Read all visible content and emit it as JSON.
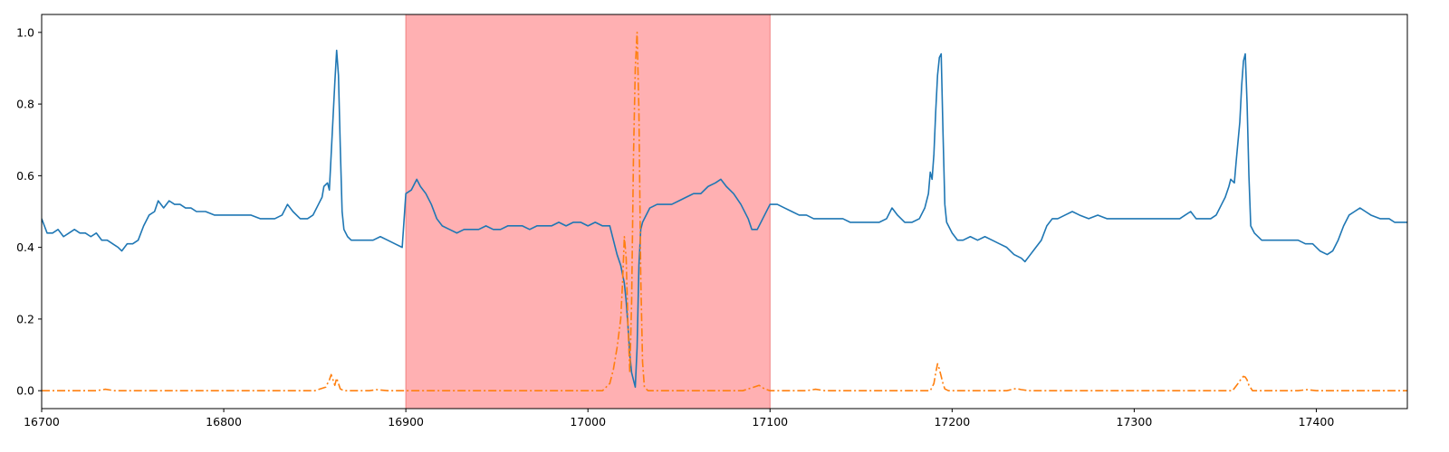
{
  "chart_data": {
    "type": "line",
    "title": "",
    "xlabel": "",
    "ylabel": "",
    "xlim": [
      16700,
      17450
    ],
    "ylim": [
      -0.05,
      1.05
    ],
    "grid": false,
    "legend": "none",
    "x_ticks": [
      "16700",
      "16800",
      "16900",
      "17000",
      "17100",
      "17200",
      "17300",
      "17400"
    ],
    "y_ticks": [
      "0.0",
      "0.2",
      "0.4",
      "0.6",
      "0.8",
      "1.0"
    ],
    "highlight_region": {
      "x_start": 16900,
      "x_end": 17100,
      "color": "#ffb0b2"
    },
    "series": [
      {
        "color": "#1f77b4",
        "style": "solid",
        "points": [
          [
            16700,
            0.48
          ],
          [
            16703,
            0.44
          ],
          [
            16706,
            0.44
          ],
          [
            16709,
            0.45
          ],
          [
            16712,
            0.43
          ],
          [
            16715,
            0.44
          ],
          [
            16718,
            0.45
          ],
          [
            16721,
            0.44
          ],
          [
            16724,
            0.44
          ],
          [
            16727,
            0.43
          ],
          [
            16730,
            0.44
          ],
          [
            16733,
            0.42
          ],
          [
            16736,
            0.42
          ],
          [
            16739,
            0.41
          ],
          [
            16742,
            0.4
          ],
          [
            16744,
            0.39
          ],
          [
            16747,
            0.41
          ],
          [
            16750,
            0.41
          ],
          [
            16753,
            0.42
          ],
          [
            16756,
            0.46
          ],
          [
            16759,
            0.49
          ],
          [
            16762,
            0.5
          ],
          [
            16764,
            0.53
          ],
          [
            16767,
            0.51
          ],
          [
            16770,
            0.53
          ],
          [
            16773,
            0.52
          ],
          [
            16776,
            0.52
          ],
          [
            16779,
            0.51
          ],
          [
            16782,
            0.51
          ],
          [
            16785,
            0.5
          ],
          [
            16790,
            0.5
          ],
          [
            16795,
            0.49
          ],
          [
            16800,
            0.49
          ],
          [
            16805,
            0.49
          ],
          [
            16810,
            0.49
          ],
          [
            16815,
            0.49
          ],
          [
            16820,
            0.48
          ],
          [
            16825,
            0.48
          ],
          [
            16828,
            0.48
          ],
          [
            16832,
            0.49
          ],
          [
            16835,
            0.52
          ],
          [
            16838,
            0.5
          ],
          [
            16842,
            0.48
          ],
          [
            16846,
            0.48
          ],
          [
            16849,
            0.49
          ],
          [
            16852,
            0.52
          ],
          [
            16854,
            0.54
          ],
          [
            16855,
            0.57
          ],
          [
            16857,
            0.58
          ],
          [
            16858,
            0.56
          ],
          [
            16859,
            0.66
          ],
          [
            16860,
            0.76
          ],
          [
            16861,
            0.86
          ],
          [
            16862,
            0.95
          ],
          [
            16863,
            0.88
          ],
          [
            16864,
            0.68
          ],
          [
            16865,
            0.5
          ],
          [
            16866,
            0.45
          ],
          [
            16868,
            0.43
          ],
          [
            16870,
            0.42
          ],
          [
            16874,
            0.42
          ],
          [
            16878,
            0.42
          ],
          [
            16882,
            0.42
          ],
          [
            16886,
            0.43
          ],
          [
            16890,
            0.42
          ],
          [
            16894,
            0.41
          ],
          [
            16898,
            0.4
          ],
          [
            16900,
            0.55
          ],
          [
            16903,
            0.56
          ],
          [
            16906,
            0.59
          ],
          [
            16908,
            0.57
          ],
          [
            16911,
            0.55
          ],
          [
            16914,
            0.52
          ],
          [
            16917,
            0.48
          ],
          [
            16920,
            0.46
          ],
          [
            16924,
            0.45
          ],
          [
            16928,
            0.44
          ],
          [
            16932,
            0.45
          ],
          [
            16936,
            0.45
          ],
          [
            16940,
            0.45
          ],
          [
            16944,
            0.46
          ],
          [
            16948,
            0.45
          ],
          [
            16952,
            0.45
          ],
          [
            16956,
            0.46
          ],
          [
            16960,
            0.46
          ],
          [
            16964,
            0.46
          ],
          [
            16968,
            0.45
          ],
          [
            16972,
            0.46
          ],
          [
            16976,
            0.46
          ],
          [
            16980,
            0.46
          ],
          [
            16984,
            0.47
          ],
          [
            16988,
            0.46
          ],
          [
            16992,
            0.47
          ],
          [
            16996,
            0.47
          ],
          [
            17000,
            0.46
          ],
          [
            17004,
            0.47
          ],
          [
            17008,
            0.46
          ],
          [
            17012,
            0.46
          ],
          [
            17014,
            0.42
          ],
          [
            17016,
            0.38
          ],
          [
            17018,
            0.35
          ],
          [
            17020,
            0.3
          ],
          [
            17021,
            0.25
          ],
          [
            17022,
            0.18
          ],
          [
            17023,
            0.1
          ],
          [
            17024,
            0.05
          ],
          [
            17025,
            0.03
          ],
          [
            17026,
            0.01
          ],
          [
            17027,
            0.12
          ],
          [
            17028,
            0.35
          ],
          [
            17029,
            0.45
          ],
          [
            17030,
            0.47
          ],
          [
            17034,
            0.51
          ],
          [
            17038,
            0.52
          ],
          [
            17042,
            0.52
          ],
          [
            17046,
            0.52
          ],
          [
            17050,
            0.53
          ],
          [
            17054,
            0.54
          ],
          [
            17058,
            0.55
          ],
          [
            17062,
            0.55
          ],
          [
            17066,
            0.57
          ],
          [
            17070,
            0.58
          ],
          [
            17073,
            0.59
          ],
          [
            17076,
            0.57
          ],
          [
            17080,
            0.55
          ],
          [
            17084,
            0.52
          ],
          [
            17088,
            0.48
          ],
          [
            17090,
            0.45
          ],
          [
            17093,
            0.45
          ],
          [
            17096,
            0.48
          ],
          [
            17100,
            0.52
          ],
          [
            17104,
            0.52
          ],
          [
            17108,
            0.51
          ],
          [
            17112,
            0.5
          ],
          [
            17116,
            0.49
          ],
          [
            17120,
            0.49
          ],
          [
            17124,
            0.48
          ],
          [
            17128,
            0.48
          ],
          [
            17132,
            0.48
          ],
          [
            17136,
            0.48
          ],
          [
            17140,
            0.48
          ],
          [
            17144,
            0.47
          ],
          [
            17148,
            0.47
          ],
          [
            17152,
            0.47
          ],
          [
            17156,
            0.47
          ],
          [
            17160,
            0.47
          ],
          [
            17164,
            0.48
          ],
          [
            17167,
            0.51
          ],
          [
            17170,
            0.49
          ],
          [
            17174,
            0.47
          ],
          [
            17178,
            0.47
          ],
          [
            17182,
            0.48
          ],
          [
            17185,
            0.51
          ],
          [
            17187,
            0.55
          ],
          [
            17188,
            0.61
          ],
          [
            17189,
            0.59
          ],
          [
            17190,
            0.66
          ],
          [
            17191,
            0.78
          ],
          [
            17192,
            0.88
          ],
          [
            17193,
            0.93
          ],
          [
            17194,
            0.94
          ],
          [
            17195,
            0.72
          ],
          [
            17196,
            0.52
          ],
          [
            17197,
            0.47
          ],
          [
            17200,
            0.44
          ],
          [
            17203,
            0.42
          ],
          [
            17206,
            0.42
          ],
          [
            17210,
            0.43
          ],
          [
            17214,
            0.42
          ],
          [
            17218,
            0.43
          ],
          [
            17222,
            0.42
          ],
          [
            17226,
            0.41
          ],
          [
            17230,
            0.4
          ],
          [
            17234,
            0.38
          ],
          [
            17238,
            0.37
          ],
          [
            17240,
            0.36
          ],
          [
            17243,
            0.38
          ],
          [
            17246,
            0.4
          ],
          [
            17249,
            0.42
          ],
          [
            17252,
            0.46
          ],
          [
            17255,
            0.48
          ],
          [
            17258,
            0.48
          ],
          [
            17262,
            0.49
          ],
          [
            17266,
            0.5
          ],
          [
            17270,
            0.49
          ],
          [
            17275,
            0.48
          ],
          [
            17280,
            0.49
          ],
          [
            17285,
            0.48
          ],
          [
            17290,
            0.48
          ],
          [
            17295,
            0.48
          ],
          [
            17300,
            0.48
          ],
          [
            17305,
            0.48
          ],
          [
            17310,
            0.48
          ],
          [
            17315,
            0.48
          ],
          [
            17320,
            0.48
          ],
          [
            17325,
            0.48
          ],
          [
            17328,
            0.49
          ],
          [
            17331,
            0.5
          ],
          [
            17334,
            0.48
          ],
          [
            17338,
            0.48
          ],
          [
            17342,
            0.48
          ],
          [
            17345,
            0.49
          ],
          [
            17348,
            0.52
          ],
          [
            17350,
            0.54
          ],
          [
            17352,
            0.57
          ],
          [
            17353,
            0.59
          ],
          [
            17355,
            0.58
          ],
          [
            17356,
            0.64
          ],
          [
            17358,
            0.75
          ],
          [
            17359,
            0.85
          ],
          [
            17360,
            0.92
          ],
          [
            17361,
            0.94
          ],
          [
            17362,
            0.8
          ],
          [
            17363,
            0.6
          ],
          [
            17364,
            0.46
          ],
          [
            17366,
            0.44
          ],
          [
            17370,
            0.42
          ],
          [
            17374,
            0.42
          ],
          [
            17378,
            0.42
          ],
          [
            17382,
            0.42
          ],
          [
            17386,
            0.42
          ],
          [
            17390,
            0.42
          ],
          [
            17394,
            0.41
          ],
          [
            17398,
            0.41
          ],
          [
            17402,
            0.39
          ],
          [
            17406,
            0.38
          ],
          [
            17409,
            0.39
          ],
          [
            17412,
            0.42
          ],
          [
            17415,
            0.46
          ],
          [
            17418,
            0.49
          ],
          [
            17421,
            0.5
          ],
          [
            17424,
            0.51
          ],
          [
            17427,
            0.5
          ],
          [
            17430,
            0.49
          ],
          [
            17435,
            0.48
          ],
          [
            17440,
            0.48
          ],
          [
            17443,
            0.47
          ],
          [
            17446,
            0.47
          ],
          [
            17450,
            0.47
          ]
        ]
      },
      {
        "color": "#ff7f0e",
        "style": "dashdot",
        "points": [
          [
            16700,
            0.0
          ],
          [
            16730,
            0.0
          ],
          [
            16735,
            0.004
          ],
          [
            16740,
            0.0
          ],
          [
            16800,
            0.0
          ],
          [
            16850,
            0.0
          ],
          [
            16856,
            0.01
          ],
          [
            16858,
            0.03
          ],
          [
            16859,
            0.045
          ],
          [
            16860,
            0.03
          ],
          [
            16861,
            0.015
          ],
          [
            16862,
            0.035
          ],
          [
            16863,
            0.02
          ],
          [
            16864,
            0.005
          ],
          [
            16866,
            0.0
          ],
          [
            16880,
            0.0
          ],
          [
            16884,
            0.003
          ],
          [
            16890,
            0.0
          ],
          [
            16950,
            0.0
          ],
          [
            17000,
            0.0
          ],
          [
            17008,
            0.0
          ],
          [
            17012,
            0.02
          ],
          [
            17014,
            0.06
          ],
          [
            17016,
            0.12
          ],
          [
            17018,
            0.2
          ],
          [
            17019,
            0.3
          ],
          [
            17020,
            0.43
          ],
          [
            17021,
            0.37
          ],
          [
            17022,
            0.18
          ],
          [
            17023,
            0.05
          ],
          [
            17024,
            0.25
          ],
          [
            17025,
            0.65
          ],
          [
            17026,
            0.9
          ],
          [
            17027,
            1.0
          ],
          [
            17028,
            0.78
          ],
          [
            17029,
            0.32
          ],
          [
            17030,
            0.08
          ],
          [
            17031,
            0.01
          ],
          [
            17033,
            0.0
          ],
          [
            17060,
            0.0
          ],
          [
            17085,
            0.0
          ],
          [
            17090,
            0.008
          ],
          [
            17094,
            0.015
          ],
          [
            17097,
            0.005
          ],
          [
            17100,
            0.0
          ],
          [
            17120,
            0.0
          ],
          [
            17125,
            0.004
          ],
          [
            17130,
            0.0
          ],
          [
            17188,
            0.0
          ],
          [
            17190,
            0.02
          ],
          [
            17191,
            0.05
          ],
          [
            17192,
            0.075
          ],
          [
            17193,
            0.06
          ],
          [
            17194,
            0.04
          ],
          [
            17195,
            0.02
          ],
          [
            17196,
            0.005
          ],
          [
            17198,
            0.0
          ],
          [
            17230,
            0.0
          ],
          [
            17235,
            0.006
          ],
          [
            17238,
            0.003
          ],
          [
            17242,
            0.0
          ],
          [
            17300,
            0.0
          ],
          [
            17354,
            0.0
          ],
          [
            17357,
            0.02
          ],
          [
            17359,
            0.035
          ],
          [
            17360,
            0.04
          ],
          [
            17361,
            0.038
          ],
          [
            17362,
            0.03
          ],
          [
            17363,
            0.015
          ],
          [
            17365,
            0.0
          ],
          [
            17390,
            0.0
          ],
          [
            17395,
            0.003
          ],
          [
            17400,
            0.0
          ],
          [
            17450,
            0.0
          ]
        ]
      }
    ]
  }
}
